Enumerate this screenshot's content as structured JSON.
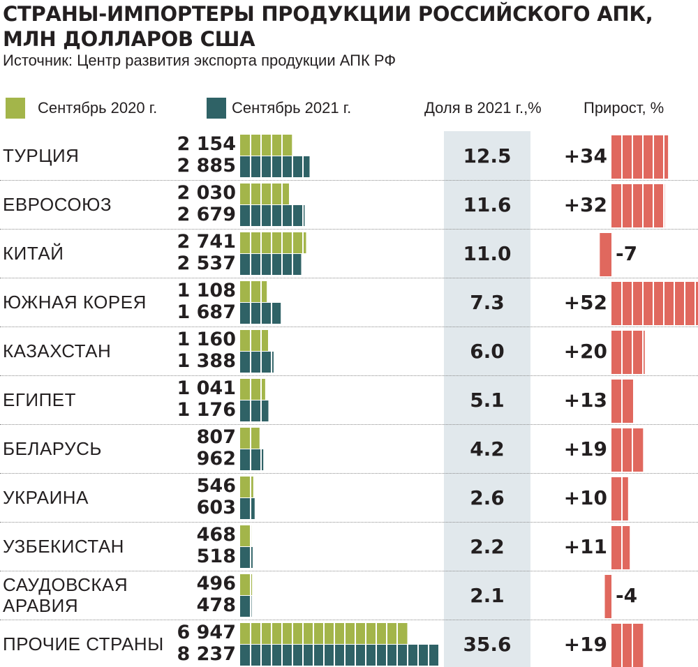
{
  "title_lines": [
    "СТРАНЫ-ИМПОРТЕРЫ ПРОДУКЦИИ РОССИЙСКОГО АПК,",
    "МЛН ДОЛЛАРОВ США"
  ],
  "source": "Источник: Центр развития экспорта продукции АПК РФ",
  "colors": {
    "series_2020": "#a3b54a",
    "series_2021": "#2f6266",
    "growth": "#e0685e",
    "share_band": "#e1e8ec"
  },
  "chart_data": {
    "type": "bar",
    "orientation": "horizontal",
    "title": "СТРАНЫ-ИМПОРТЕРЫ ПРОДУКЦИИ РОССИЙСКОГО АПК, МЛН ДОЛЛАРОВ США",
    "legend_placement": "top-left",
    "legend": [
      "Сентябрь 2020 г.",
      "Сентябрь 2021 г."
    ],
    "share_header": "Доля в 2021 г.,%",
    "growth_header": "Прирост, %",
    "categories": [
      {
        "label_lines": [
          "ТУРЦИЯ"
        ]
      },
      {
        "label_lines": [
          "ЕВРОСОЮЗ"
        ]
      },
      {
        "label_lines": [
          "КИТАЙ"
        ]
      },
      {
        "label_lines": [
          "ЮЖНАЯ КОРЕЯ"
        ]
      },
      {
        "label_lines": [
          "КАЗАХСТАН"
        ]
      },
      {
        "label_lines": [
          "ЕГИПЕТ"
        ]
      },
      {
        "label_lines": [
          "БЕЛАРУСЬ"
        ]
      },
      {
        "label_lines": [
          "УКРАИНА"
        ]
      },
      {
        "label_lines": [
          "УЗБЕКИСТАН"
        ]
      },
      {
        "label_lines": [
          "САУДОВСКАЯ",
          "АРАВИЯ"
        ]
      },
      {
        "label_lines": [
          "ПРОЧИЕ СТРАНЫ"
        ]
      }
    ],
    "series": [
      {
        "name": "Сентябрь 2020 г.",
        "values": [
          2154,
          2030,
          2741,
          1108,
          1160,
          1041,
          807,
          546,
          468,
          496,
          6947
        ],
        "labels": [
          "2 154",
          "2 030",
          "2 741",
          "1 108",
          "1 160",
          "1 041",
          "807",
          "546",
          "468",
          "496",
          "6 947"
        ]
      },
      {
        "name": "Сентябрь 2021 г.",
        "values": [
          2885,
          2679,
          2537,
          1687,
          1388,
          1176,
          962,
          603,
          518,
          478,
          8237
        ],
        "labels": [
          "2 885",
          "2 679",
          "2 537",
          "1 687",
          "1 388",
          "1 176",
          "962",
          "603",
          "518",
          "478",
          "8 237"
        ]
      }
    ],
    "share_2021": [
      "12.5",
      "11.6",
      "11.0",
      "7.3",
      "6.0",
      "5.1",
      "4.2",
      "2.6",
      "2.2",
      "2.1",
      "35.6"
    ],
    "growth_values": [
      34,
      32,
      -7,
      52,
      20,
      13,
      19,
      10,
      11,
      -4,
      19
    ],
    "growth_labels": [
      "+34",
      "+32",
      "-7",
      "+52",
      "+20",
      "+13",
      "+19",
      "+10",
      "+11",
      "-4",
      "+19"
    ]
  }
}
